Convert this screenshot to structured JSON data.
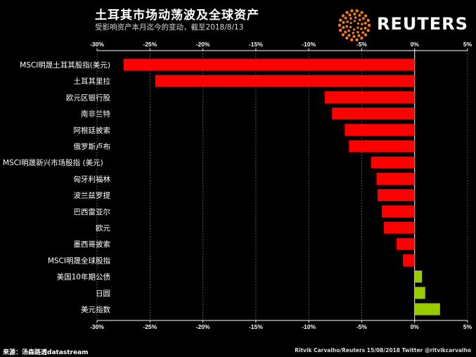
{
  "header": {
    "title": "土耳其市场动荡波及全球资产",
    "subtitle": "受影响资产本月迄今的变动，截至2018/8/13",
    "brand": "REUTERS",
    "brand_icon": "reuters-dot-logo-icon"
  },
  "footer": {
    "source": "来源：汤森路透datastream",
    "credit": "Ritvik Carvalho/Reuters 15/08/2018 Twitter @ritvikcarvalho"
  },
  "colors": {
    "negative": "#ff0000",
    "positive": "#99cc00",
    "background": "#000000",
    "brand": "#f47b20"
  },
  "chart_data": {
    "type": "bar",
    "orientation": "horizontal",
    "title": "土耳其市场动荡波及全球资产",
    "subtitle": "受影响资产本月迄今的变动，截至2018/8/13",
    "xlim": [
      -30,
      5
    ],
    "ticks": [
      "-30%",
      "-25%",
      "-20%",
      "-15%",
      "-10%",
      "-5%",
      "0%",
      "5%"
    ],
    "tick_values": [
      -30,
      -25,
      -20,
      -15,
      -10,
      -5,
      0,
      5
    ],
    "categories": [
      "MSCI明晟土耳其股指(美元)",
      "土耳其里拉",
      "欧元区银行股",
      "南非兰特",
      "阿根廷披索",
      "俄罗斯卢布",
      "MSCI明晟新兴市场股指 (美元)",
      "匈牙利福林",
      "波兰兹罗提",
      "巴西雷亚尔",
      "欧元",
      "墨西哥披索",
      "MSCI明晟全球股指",
      "美国10年期公债",
      "日圆",
      "美元指数"
    ],
    "values": [
      -27.5,
      -24.5,
      -8.5,
      -7.8,
      -6.6,
      -6.2,
      -4.1,
      -3.6,
      -3.5,
      -3.1,
      -2.9,
      -1.7,
      -1.1,
      0.7,
      1.0,
      2.4
    ],
    "grid": true,
    "legend": "none"
  }
}
